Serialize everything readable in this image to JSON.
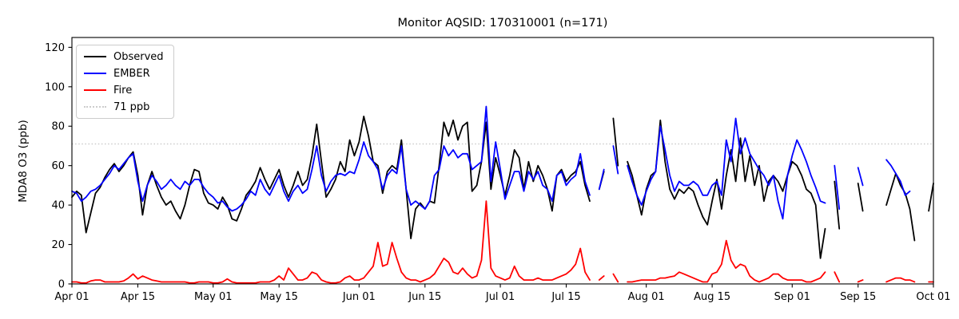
{
  "chart": {
    "title": "Monitor AQSID: 170310001 (n=171)",
    "y_axis_label": "MDA8 O3 (ppb)"
  },
  "chart_data": {
    "type": "line",
    "title": "Monitor AQSID: 170310001 (n=171)",
    "xlabel": "",
    "ylabel": "MDA8 O3 (ppb)",
    "ylim": [
      0,
      125
    ],
    "grid": false,
    "legend_position": "upper left",
    "x_start_label": "Apr 01",
    "x_end_label": "Oct 01",
    "n_points_label": "n=171",
    "x_ticks": [
      {
        "day": 0,
        "label": "Apr 01"
      },
      {
        "day": 14,
        "label": "Apr 15"
      },
      {
        "day": 30,
        "label": "May 01"
      },
      {
        "day": 44,
        "label": "May 15"
      },
      {
        "day": 61,
        "label": "Jun 01"
      },
      {
        "day": 75,
        "label": "Jun 15"
      },
      {
        "day": 91,
        "label": "Jul 01"
      },
      {
        "day": 105,
        "label": "Jul 15"
      },
      {
        "day": 122,
        "label": "Aug 01"
      },
      {
        "day": 136,
        "label": "Aug 15"
      },
      {
        "day": 153,
        "label": "Sep 01"
      },
      {
        "day": 167,
        "label": "Sep 15"
      },
      {
        "day": 183,
        "label": "Oct 01"
      }
    ],
    "y_ticks": [
      0,
      20,
      40,
      60,
      80,
      100,
      120
    ],
    "threshold": {
      "value": 71,
      "label": "71 ppb",
      "color": "#cccccc",
      "style": "dotted"
    },
    "legend": [
      {
        "label": "Observed",
        "color": "#000000",
        "style": "solid"
      },
      {
        "label": "EMBER",
        "color": "#0000ff",
        "style": "solid"
      },
      {
        "label": "Fire",
        "color": "#ff0000",
        "style": "solid"
      },
      {
        "label": "71 ppb",
        "color": "#cccccc",
        "style": "dotted"
      }
    ],
    "series": [
      {
        "name": "Observed",
        "color": "#000000",
        "values": [
          44,
          47,
          45,
          26,
          36,
          46,
          49,
          54,
          58,
          61,
          57,
          60,
          64,
          67,
          55,
          35,
          50,
          57,
          50,
          44,
          40,
          42,
          37,
          33,
          40,
          50,
          58,
          57,
          46,
          41,
          40,
          38,
          44,
          40,
          33,
          32,
          38,
          45,
          48,
          52,
          59,
          53,
          48,
          53,
          58,
          50,
          44,
          50,
          57,
          50,
          53,
          65,
          81,
          62,
          44,
          48,
          53,
          62,
          57,
          73,
          65,
          72,
          85,
          75,
          62,
          60,
          46,
          57,
          60,
          58,
          73,
          48,
          23,
          38,
          41,
          38,
          42,
          41,
          60,
          82,
          75,
          83,
          73,
          80,
          82,
          47,
          50,
          62,
          82,
          48,
          64,
          55,
          45,
          55,
          68,
          64,
          48,
          62,
          52,
          60,
          55,
          48,
          37,
          55,
          58,
          52,
          55,
          57,
          62,
          50,
          42,
          null,
          48,
          57,
          null,
          84,
          60,
          null,
          62,
          55,
          45,
          35,
          48,
          55,
          57,
          83,
          62,
          48,
          43,
          48,
          46,
          49,
          47,
          40,
          34,
          30,
          42,
          53,
          38,
          55,
          68,
          52,
          74,
          52,
          65,
          50,
          60,
          42,
          52,
          55,
          52,
          47,
          55,
          62,
          60,
          55,
          48,
          46,
          40,
          13,
          28,
          null,
          52,
          28,
          null,
          null,
          null,
          51,
          37,
          null,
          null,
          null,
          null,
          40,
          48,
          56,
          50,
          46,
          38,
          22,
          null,
          null,
          37,
          51
        ]
      },
      {
        "name": "EMBER",
        "color": "#0000ff",
        "values": [
          47,
          46,
          42,
          44,
          47,
          48,
          50,
          53,
          56,
          60,
          58,
          61,
          64,
          66,
          52,
          42,
          50,
          55,
          52,
          48,
          50,
          53,
          50,
          48,
          52,
          50,
          53,
          53,
          49,
          46,
          44,
          41,
          42,
          39,
          37,
          38,
          40,
          43,
          47,
          45,
          53,
          48,
          45,
          50,
          55,
          47,
          42,
          47,
          50,
          46,
          48,
          58,
          70,
          55,
          47,
          52,
          55,
          56,
          55,
          57,
          56,
          63,
          72,
          65,
          62,
          58,
          48,
          55,
          58,
          56,
          70,
          48,
          40,
          42,
          40,
          38,
          42,
          55,
          58,
          70,
          65,
          68,
          64,
          66,
          66,
          58,
          60,
          62,
          90,
          52,
          72,
          58,
          43,
          50,
          57,
          57,
          47,
          57,
          53,
          57,
          50,
          48,
          42,
          55,
          57,
          50,
          53,
          55,
          66,
          52,
          45,
          null,
          48,
          58,
          null,
          70,
          56,
          null,
          60,
          52,
          45,
          40,
          47,
          53,
          57,
          80,
          68,
          55,
          47,
          52,
          50,
          50,
          52,
          50,
          45,
          45,
          50,
          52,
          45,
          73,
          62,
          84,
          66,
          74,
          66,
          62,
          58,
          55,
          50,
          55,
          42,
          33,
          55,
          65,
          73,
          68,
          62,
          55,
          49,
          42,
          41,
          null,
          60,
          38,
          null,
          null,
          null,
          59,
          50,
          null,
          null,
          null,
          null,
          63,
          60,
          56,
          52,
          45,
          47,
          null,
          null,
          null,
          null,
          null
        ]
      },
      {
        "name": "Fire",
        "color": "#ff0000",
        "values": [
          1,
          1,
          0.5,
          0.5,
          1.5,
          2,
          2,
          1,
          1,
          1,
          1,
          1.5,
          3,
          5,
          2.5,
          4,
          3,
          2,
          1.5,
          1,
          1,
          1,
          1,
          1,
          1,
          0.5,
          0.5,
          1,
          1,
          1,
          0.5,
          0.5,
          1,
          2.5,
          1,
          0.5,
          0.5,
          0.5,
          0.5,
          0.5,
          1,
          1,
          1,
          2,
          4,
          2,
          8,
          5,
          2,
          2,
          3,
          6,
          5,
          2,
          1,
          0.5,
          0.5,
          1,
          3,
          4,
          2,
          2,
          3,
          6,
          9,
          21,
          9,
          10,
          21,
          13,
          6,
          3,
          2,
          2,
          1,
          2,
          3,
          5,
          9,
          13,
          11,
          6,
          5,
          8,
          5,
          3,
          4,
          12,
          42,
          8,
          4,
          3,
          2,
          3,
          9,
          4,
          2,
          2,
          2,
          3,
          2,
          2,
          2,
          3,
          4,
          5,
          7,
          10,
          18,
          6,
          2,
          null,
          2,
          4,
          null,
          5,
          1,
          null,
          1,
          1,
          1.5,
          2,
          2,
          2,
          2,
          3,
          3,
          3.5,
          4,
          6,
          5,
          4,
          3,
          2,
          1,
          1,
          5,
          6,
          10,
          22,
          12,
          8,
          10,
          9,
          4,
          2,
          1,
          2,
          3,
          5,
          5,
          3,
          2,
          2,
          2,
          2,
          1,
          1,
          2,
          3,
          6,
          null,
          6,
          1,
          null,
          null,
          null,
          1,
          2,
          null,
          null,
          null,
          null,
          1,
          2,
          3,
          3,
          2,
          2,
          1,
          null,
          null,
          1,
          1
        ]
      }
    ]
  }
}
